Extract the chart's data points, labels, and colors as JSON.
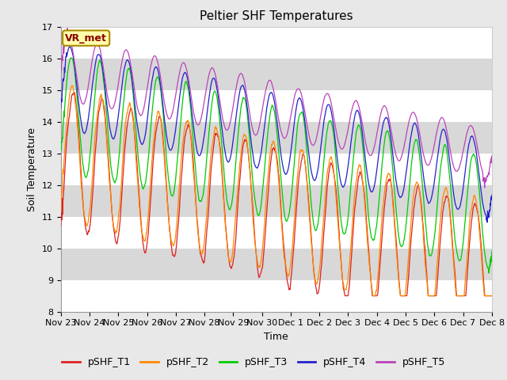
{
  "title": "Peltier SHF Temperatures",
  "xlabel": "Time",
  "ylabel": "Soil Temperature",
  "ylim": [
    8.0,
    17.0
  ],
  "yticks": [
    8.0,
    9.0,
    10.0,
    11.0,
    12.0,
    13.0,
    14.0,
    15.0,
    16.0,
    17.0
  ],
  "n_days": 15,
  "n_pts": 1440,
  "colors": {
    "T1": "#dd2222",
    "T2": "#ff8800",
    "T3": "#00cc00",
    "T4": "#2222cc",
    "T5": "#bb44bb"
  },
  "labels": [
    "pSHF_T1",
    "pSHF_T2",
    "pSHF_T3",
    "pSHF_T4",
    "pSHF_T5"
  ],
  "xtick_labels": [
    "Nov 23",
    "Nov 24",
    "Nov 25",
    "Nov 26",
    "Nov 27",
    "Nov 28",
    "Nov 29",
    "Nov 30",
    "Dec 1",
    "Dec 2",
    "Dec 3",
    "Dec 4",
    "Dec 5",
    "Dec 6",
    "Dec 7",
    "Dec 8"
  ],
  "vr_met_label": "VR_met",
  "background_color": "#e8e8e8",
  "band_colors": [
    "#ffffff",
    "#d8d8d8"
  ],
  "title_fontsize": 11,
  "axis_label_fontsize": 9,
  "tick_fontsize": 8,
  "legend_fontsize": 9,
  "linewidth": 0.9
}
